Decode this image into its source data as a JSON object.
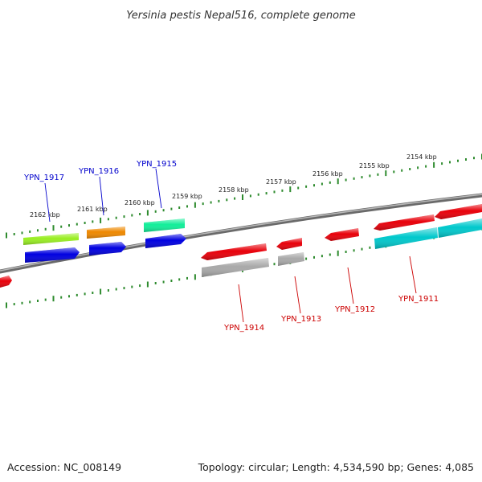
{
  "title": "Yersinia pestis Nepal516, complete genome",
  "footer": {
    "accession": "Accession: NC_008149",
    "summary": "Topology: circular; Length: 4,534,590 bp; Genes: 4,085"
  },
  "colors": {
    "backbone": "#8a8a8a",
    "ruler": "#2e8b2e",
    "top_label": "#0000cc",
    "bottom_label": "#cc0000",
    "red": "#e8000a",
    "blue": "#0000e0",
    "lime": "#99ee22",
    "orange": "#ee8800",
    "spring": "#11ee99",
    "gray": "#a9a9a9",
    "cyan": "#00c8cc"
  },
  "kbp_labels": [
    "2162 kbp",
    "2161 kbp",
    "2160 kbp",
    "2159 kbp",
    "2158 kbp",
    "2157 kbp",
    "2156 kbp",
    "2155 kbp",
    "2154 kbp"
  ],
  "gene_labels_top": [
    "YPN_1917",
    "YPN_1916",
    "YPN_1915"
  ],
  "gene_labels_bottom": [
    "YPN_1914",
    "YPN_1913",
    "YPN_1912",
    "YPN_1911"
  ]
}
